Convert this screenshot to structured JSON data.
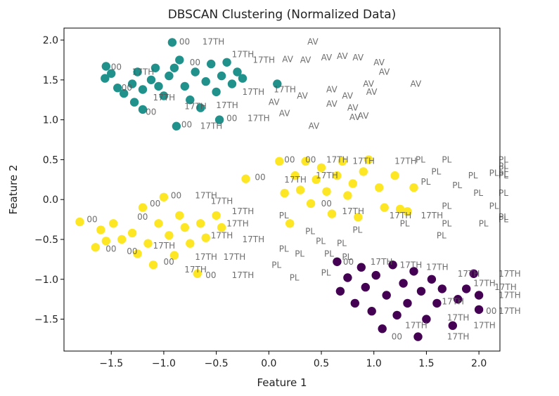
{
  "chart_data": {
    "type": "scatter",
    "title": "DBSCAN Clustering (Normalized Data)",
    "xlabel": "Feature 1",
    "ylabel": "Feature 2",
    "xlim": [
      -1.95,
      2.2
    ],
    "ylim": [
      -1.9,
      2.15
    ],
    "xticks": [
      -1.5,
      -1.0,
      -0.5,
      0.0,
      0.5,
      1.0,
      1.5,
      2.0
    ],
    "xtick_labels": [
      "−1.5",
      "−1.0",
      "−0.5",
      "0.0",
      "0.5",
      "1.0",
      "1.5",
      "2.0"
    ],
    "yticks": [
      -1.5,
      -1.0,
      -0.5,
      0.0,
      0.5,
      1.0,
      1.5,
      2.0
    ],
    "ytick_labels": [
      "−1.5",
      "−1.0",
      "−0.5",
      "0.0",
      "0.5",
      "1.0",
      "1.5",
      "2.0"
    ],
    "grid": false,
    "colors": {
      "teal": "#21918c",
      "yellow": "#fde725",
      "purple": "#440154"
    },
    "points": [
      {
        "x": -0.92,
        "y": 1.97,
        "c": "teal"
      },
      {
        "x": -1.55,
        "y": 1.67,
        "c": "teal"
      },
      {
        "x": -1.5,
        "y": 1.58,
        "c": "teal"
      },
      {
        "x": -1.56,
        "y": 1.52,
        "c": "teal"
      },
      {
        "x": -1.44,
        "y": 1.4,
        "c": "teal"
      },
      {
        "x": -1.38,
        "y": 1.33,
        "c": "teal"
      },
      {
        "x": -1.3,
        "y": 1.45,
        "c": "teal"
      },
      {
        "x": -1.25,
        "y": 1.6,
        "c": "teal"
      },
      {
        "x": -1.2,
        "y": 1.38,
        "c": "teal"
      },
      {
        "x": -1.28,
        "y": 1.22,
        "c": "teal"
      },
      {
        "x": -1.2,
        "y": 1.13,
        "c": "teal"
      },
      {
        "x": -1.12,
        "y": 1.5,
        "c": "teal"
      },
      {
        "x": -1.08,
        "y": 1.65,
        "c": "teal"
      },
      {
        "x": -1.0,
        "y": 1.3,
        "c": "teal"
      },
      {
        "x": -0.95,
        "y": 1.55,
        "c": "teal"
      },
      {
        "x": -0.88,
        "y": 0.92,
        "c": "teal"
      },
      {
        "x": -0.85,
        "y": 1.75,
        "c": "teal"
      },
      {
        "x": -0.8,
        "y": 1.42,
        "c": "teal"
      },
      {
        "x": -0.75,
        "y": 1.25,
        "c": "teal"
      },
      {
        "x": -0.7,
        "y": 1.6,
        "c": "teal"
      },
      {
        "x": -0.65,
        "y": 1.15,
        "c": "teal"
      },
      {
        "x": -0.6,
        "y": 1.48,
        "c": "teal"
      },
      {
        "x": -0.55,
        "y": 1.7,
        "c": "teal"
      },
      {
        "x": -0.5,
        "y": 1.35,
        "c": "teal"
      },
      {
        "x": -0.45,
        "y": 1.55,
        "c": "teal"
      },
      {
        "x": -0.47,
        "y": 1.0,
        "c": "teal"
      },
      {
        "x": -0.4,
        "y": 1.72,
        "c": "teal"
      },
      {
        "x": -0.35,
        "y": 1.45,
        "c": "teal"
      },
      {
        "x": -0.3,
        "y": 1.6,
        "c": "teal"
      },
      {
        "x": -0.25,
        "y": 1.52,
        "c": "teal"
      },
      {
        "x": -0.9,
        "y": 1.65,
        "c": "teal"
      },
      {
        "x": -1.05,
        "y": 1.42,
        "c": "teal"
      },
      {
        "x": 0.08,
        "y": 1.45,
        "c": "teal"
      },
      {
        "x": -1.8,
        "y": -0.28,
        "c": "yellow"
      },
      {
        "x": -1.65,
        "y": -0.6,
        "c": "yellow"
      },
      {
        "x": -1.6,
        "y": -0.38,
        "c": "yellow"
      },
      {
        "x": -1.55,
        "y": -0.52,
        "c": "yellow"
      },
      {
        "x": -1.48,
        "y": -0.3,
        "c": "yellow"
      },
      {
        "x": -1.4,
        "y": -0.5,
        "c": "yellow"
      },
      {
        "x": -1.3,
        "y": -0.42,
        "c": "yellow"
      },
      {
        "x": -1.25,
        "y": -0.68,
        "c": "yellow"
      },
      {
        "x": -1.2,
        "y": -0.1,
        "c": "yellow"
      },
      {
        "x": -1.15,
        "y": -0.55,
        "c": "yellow"
      },
      {
        "x": -1.1,
        "y": -0.82,
        "c": "yellow"
      },
      {
        "x": -1.05,
        "y": -0.3,
        "c": "yellow"
      },
      {
        "x": -1.0,
        "y": 0.03,
        "c": "yellow"
      },
      {
        "x": -0.95,
        "y": -0.45,
        "c": "yellow"
      },
      {
        "x": -0.9,
        "y": -0.7,
        "c": "yellow"
      },
      {
        "x": -0.85,
        "y": -0.2,
        "c": "yellow"
      },
      {
        "x": -0.8,
        "y": -0.35,
        "c": "yellow"
      },
      {
        "x": -0.75,
        "y": -0.55,
        "c": "yellow"
      },
      {
        "x": -0.68,
        "y": -0.93,
        "c": "yellow"
      },
      {
        "x": -0.65,
        "y": -0.3,
        "c": "yellow"
      },
      {
        "x": -0.6,
        "y": -0.48,
        "c": "yellow"
      },
      {
        "x": -0.5,
        "y": -0.2,
        "c": "yellow"
      },
      {
        "x": -0.45,
        "y": -0.35,
        "c": "yellow"
      },
      {
        "x": -0.22,
        "y": 0.26,
        "c": "yellow"
      },
      {
        "x": 0.1,
        "y": 0.48,
        "c": "yellow"
      },
      {
        "x": 0.15,
        "y": 0.08,
        "c": "yellow"
      },
      {
        "x": 0.2,
        "y": -0.3,
        "c": "yellow"
      },
      {
        "x": 0.25,
        "y": 0.3,
        "c": "yellow"
      },
      {
        "x": 0.3,
        "y": 0.12,
        "c": "yellow"
      },
      {
        "x": 0.35,
        "y": 0.48,
        "c": "yellow"
      },
      {
        "x": 0.4,
        "y": -0.05,
        "c": "yellow"
      },
      {
        "x": 0.45,
        "y": 0.25,
        "c": "yellow"
      },
      {
        "x": 0.5,
        "y": 0.4,
        "c": "yellow"
      },
      {
        "x": 0.55,
        "y": 0.1,
        "c": "yellow"
      },
      {
        "x": 0.6,
        "y": -0.18,
        "c": "yellow"
      },
      {
        "x": 0.65,
        "y": 0.3,
        "c": "yellow"
      },
      {
        "x": 0.7,
        "y": 0.48,
        "c": "yellow"
      },
      {
        "x": 0.75,
        "y": 0.05,
        "c": "yellow"
      },
      {
        "x": 0.8,
        "y": 0.2,
        "c": "yellow"
      },
      {
        "x": 0.85,
        "y": -0.22,
        "c": "yellow"
      },
      {
        "x": 0.9,
        "y": 0.35,
        "c": "yellow"
      },
      {
        "x": 0.95,
        "y": 0.5,
        "c": "yellow"
      },
      {
        "x": 1.05,
        "y": 0.15,
        "c": "yellow"
      },
      {
        "x": 1.1,
        "y": -0.1,
        "c": "yellow"
      },
      {
        "x": 1.2,
        "y": 0.3,
        "c": "yellow"
      },
      {
        "x": 1.25,
        "y": -0.12,
        "c": "yellow"
      },
      {
        "x": 1.32,
        "y": -0.15,
        "c": "yellow"
      },
      {
        "x": 1.38,
        "y": 0.15,
        "c": "yellow"
      },
      {
        "x": 0.65,
        "y": -0.78,
        "c": "purple"
      },
      {
        "x": 0.68,
        "y": -1.15,
        "c": "purple"
      },
      {
        "x": 0.75,
        "y": -0.98,
        "c": "purple"
      },
      {
        "x": 0.82,
        "y": -1.3,
        "c": "purple"
      },
      {
        "x": 0.88,
        "y": -0.85,
        "c": "purple"
      },
      {
        "x": 0.92,
        "y": -1.1,
        "c": "purple"
      },
      {
        "x": 0.98,
        "y": -1.4,
        "c": "purple"
      },
      {
        "x": 1.02,
        "y": -0.95,
        "c": "purple"
      },
      {
        "x": 1.08,
        "y": -1.62,
        "c": "purple"
      },
      {
        "x": 1.12,
        "y": -1.2,
        "c": "purple"
      },
      {
        "x": 1.18,
        "y": -0.82,
        "c": "purple"
      },
      {
        "x": 1.22,
        "y": -1.45,
        "c": "purple"
      },
      {
        "x": 1.28,
        "y": -1.05,
        "c": "purple"
      },
      {
        "x": 1.32,
        "y": -1.3,
        "c": "purple"
      },
      {
        "x": 1.38,
        "y": -0.9,
        "c": "purple"
      },
      {
        "x": 1.42,
        "y": -1.72,
        "c": "purple"
      },
      {
        "x": 1.45,
        "y": -1.15,
        "c": "purple"
      },
      {
        "x": 1.5,
        "y": -1.5,
        "c": "purple"
      },
      {
        "x": 1.55,
        "y": -1.0,
        "c": "purple"
      },
      {
        "x": 1.6,
        "y": -1.3,
        "c": "purple"
      },
      {
        "x": 1.65,
        "y": -1.12,
        "c": "purple"
      },
      {
        "x": 1.75,
        "y": -1.58,
        "c": "purple"
      },
      {
        "x": 1.8,
        "y": -1.25,
        "c": "purple"
      },
      {
        "x": 1.88,
        "y": -1.12,
        "c": "purple"
      },
      {
        "x": 1.95,
        "y": -0.93,
        "c": "purple"
      },
      {
        "x": 2.0,
        "y": -1.38,
        "c": "purple"
      },
      {
        "x": 2.0,
        "y": -1.2,
        "c": "purple"
      }
    ],
    "annotations": [
      {
        "text": "00",
        "x": -0.9,
        "y": 1.98
      },
      {
        "text": "17TH",
        "x": -0.68,
        "y": 1.98
      },
      {
        "text": "AV",
        "x": 0.32,
        "y": 1.98
      },
      {
        "text": "00",
        "x": -1.55,
        "y": 1.66
      },
      {
        "text": "17TH",
        "x": -1.35,
        "y": 1.6
      },
      {
        "text": "00",
        "x": -0.8,
        "y": 1.72
      },
      {
        "text": "17TH",
        "x": -0.4,
        "y": 1.82
      },
      {
        "text": "17TH",
        "x": -0.2,
        "y": 1.75
      },
      {
        "text": "AV",
        "x": 0.08,
        "y": 1.76
      },
      {
        "text": "AV",
        "x": 0.25,
        "y": 1.75
      },
      {
        "text": "AV",
        "x": 0.45,
        "y": 1.78
      },
      {
        "text": "AV",
        "x": 0.6,
        "y": 1.8
      },
      {
        "text": "AV",
        "x": 0.75,
        "y": 1.78
      },
      {
        "text": "AV",
        "x": 0.95,
        "y": 1.72
      },
      {
        "text": "AV",
        "x": 1.0,
        "y": 1.6
      },
      {
        "text": "AV",
        "x": 0.85,
        "y": 1.45
      },
      {
        "text": "AV",
        "x": 1.3,
        "y": 1.45
      },
      {
        "text": "AV",
        "x": 0.5,
        "y": 1.38
      },
      {
        "text": "AV",
        "x": 0.65,
        "y": 1.3
      },
      {
        "text": "AV",
        "x": 0.88,
        "y": 1.35
      },
      {
        "text": "00",
        "x": -1.45,
        "y": 1.4
      },
      {
        "text": "17TH",
        "x": -1.15,
        "y": 1.28
      },
      {
        "text": "00",
        "x": -1.22,
        "y": 1.1
      },
      {
        "text": "17TH",
        "x": -0.85,
        "y": 1.17
      },
      {
        "text": "17TH",
        "x": -0.55,
        "y": 1.18
      },
      {
        "text": "17TH",
        "x": -0.3,
        "y": 1.35
      },
      {
        "text": "17TH",
        "x": 0.0,
        "y": 1.38
      },
      {
        "text": "AV",
        "x": -0.05,
        "y": 1.22
      },
      {
        "text": "AV",
        "x": 0.22,
        "y": 1.3
      },
      {
        "text": "AV",
        "x": 0.5,
        "y": 1.2
      },
      {
        "text": "AV",
        "x": 0.7,
        "y": 1.15
      },
      {
        "text": "AV",
        "x": 0.05,
        "y": 1.08
      },
      {
        "text": "00",
        "x": -0.45,
        "y": 1.02
      },
      {
        "text": "17TH",
        "x": -0.7,
        "y": 0.92
      },
      {
        "text": "17TH",
        "x": -0.25,
        "y": 1.02
      },
      {
        "text": "00",
        "x": -0.88,
        "y": 0.94
      },
      {
        "text": "AV",
        "x": 0.33,
        "y": 0.92
      },
      {
        "text": "AV",
        "x": 0.72,
        "y": 1.03
      },
      {
        "text": "AV",
        "x": 0.8,
        "y": 1.05
      },
      {
        "text": "00",
        "x": 0.1,
        "y": 0.5
      },
      {
        "text": "00",
        "x": 0.3,
        "y": 0.5
      },
      {
        "text": "17TH",
        "x": 0.5,
        "y": 0.5
      },
      {
        "text": "17TH",
        "x": 0.75,
        "y": 0.48
      },
      {
        "text": "17TH",
        "x": 1.15,
        "y": 0.48
      },
      {
        "text": "PL",
        "x": 1.35,
        "y": 0.5
      },
      {
        "text": "PL",
        "x": 1.6,
        "y": 0.5
      },
      {
        "text": "PL",
        "x": 2.3,
        "y": 0.5
      },
      {
        "text": "PL",
        "x": 2.4,
        "y": 0.42
      },
      {
        "text": "PL",
        "x": 2.2,
        "y": 0.38
      },
      {
        "text": "PL",
        "x": 2.5,
        "y": 0.32
      },
      {
        "text": "PL",
        "x": 2.05,
        "y": 0.33
      },
      {
        "text": "PL",
        "x": 1.85,
        "y": 0.3
      },
      {
        "text": "PL",
        "x": 2.33,
        "y": 0.3
      },
      {
        "text": "PL",
        "x": 1.5,
        "y": 0.35
      },
      {
        "text": "00",
        "x": -0.18,
        "y": 0.28
      },
      {
        "text": "17TH",
        "x": 0.1,
        "y": 0.25
      },
      {
        "text": "17TH",
        "x": 0.4,
        "y": 0.3
      },
      {
        "text": "PL",
        "x": 1.4,
        "y": 0.22
      },
      {
        "text": "PL",
        "x": 1.7,
        "y": 0.18
      },
      {
        "text": "PL",
        "x": 1.9,
        "y": 0.08
      },
      {
        "text": "PL",
        "x": 2.2,
        "y": 0.08
      },
      {
        "text": "PL",
        "x": 2.05,
        "y": -0.08
      },
      {
        "text": "PL",
        "x": 1.6,
        "y": -0.08
      },
      {
        "text": "PL",
        "x": 2.25,
        "y": -0.22
      },
      {
        "text": "PL",
        "x": 2.4,
        "y": -0.25
      },
      {
        "text": "PL",
        "x": 1.95,
        "y": -0.3
      },
      {
        "text": "PL",
        "x": 1.6,
        "y": -0.3
      },
      {
        "text": "17TH",
        "x": 1.4,
        "y": -0.2
      },
      {
        "text": "17TH",
        "x": 1.1,
        "y": -0.2
      },
      {
        "text": "PL",
        "x": 1.55,
        "y": -0.45
      },
      {
        "text": "PL",
        "x": 1.2,
        "y": -0.3
      },
      {
        "text": "00",
        "x": 0.45,
        "y": -0.05
      },
      {
        "text": "17TH",
        "x": 0.65,
        "y": -0.15
      },
      {
        "text": "PL",
        "x": 0.75,
        "y": -0.38
      },
      {
        "text": "PL",
        "x": 0.4,
        "y": -0.52
      },
      {
        "text": "PL",
        "x": 0.6,
        "y": -0.55
      },
      {
        "text": "PL",
        "x": 0.65,
        "y": -0.72
      },
      {
        "text": "PL",
        "x": 0.48,
        "y": -0.68
      },
      {
        "text": "PL",
        "x": 0.2,
        "y": -0.68
      },
      {
        "text": "PL",
        "x": 0.05,
        "y": -0.62
      },
      {
        "text": "PL",
        "x": 0.3,
        "y": -0.4
      },
      {
        "text": "PL",
        "x": -0.02,
        "y": -0.82
      },
      {
        "text": "PL",
        "x": 0.15,
        "y": -0.98
      },
      {
        "text": "PL",
        "x": 0.45,
        "y": -0.92
      },
      {
        "text": "PL",
        "x": 0.05,
        "y": -0.2
      },
      {
        "text": "00",
        "x": -1.78,
        "y": -0.25
      },
      {
        "text": "00",
        "x": -1.6,
        "y": -0.62
      },
      {
        "text": "00",
        "x": -1.3,
        "y": -0.22
      },
      {
        "text": "00",
        "x": -1.18,
        "y": -0.05
      },
      {
        "text": "00",
        "x": -0.98,
        "y": 0.05
      },
      {
        "text": "17TH",
        "x": -0.75,
        "y": 0.05
      },
      {
        "text": "17TH",
        "x": -0.6,
        "y": -0.02
      },
      {
        "text": "17TH",
        "x": -0.4,
        "y": -0.15
      },
      {
        "text": "17TH",
        "x": -0.45,
        "y": -0.3
      },
      {
        "text": "17TH",
        "x": -0.6,
        "y": -0.45
      },
      {
        "text": "17TH",
        "x": -0.3,
        "y": -0.5
      },
      {
        "text": "17TH",
        "x": -1.15,
        "y": -0.58
      },
      {
        "text": "17TH",
        "x": -0.75,
        "y": -0.72
      },
      {
        "text": "17TH",
        "x": -0.48,
        "y": -0.72
      },
      {
        "text": "00",
        "x": -1.05,
        "y": -0.78
      },
      {
        "text": "17TH",
        "x": -0.85,
        "y": -0.88
      },
      {
        "text": "00",
        "x": -0.65,
        "y": -0.95
      },
      {
        "text": "17TH",
        "x": -0.4,
        "y": -0.95
      },
      {
        "text": "00",
        "x": -1.4,
        "y": -0.65
      },
      {
        "text": "00",
        "x": 0.66,
        "y": -0.78
      },
      {
        "text": "17TH",
        "x": 0.92,
        "y": -0.78
      },
      {
        "text": "17TH",
        "x": 1.2,
        "y": -0.82
      },
      {
        "text": "17TH",
        "x": 1.45,
        "y": -0.85
      },
      {
        "text": "17TH",
        "x": 1.75,
        "y": -0.93
      },
      {
        "text": "17TH",
        "x": 2.15,
        "y": -0.93
      },
      {
        "text": "17TH",
        "x": 1.9,
        "y": -1.05
      },
      {
        "text": "17TH",
        "x": 2.1,
        "y": -1.1
      },
      {
        "text": "17TH",
        "x": 2.25,
        "y": -1.2
      },
      {
        "text": "17TH",
        "x": 1.6,
        "y": -1.28
      },
      {
        "text": "17TH",
        "x": 2.25,
        "y": -1.4
      },
      {
        "text": "17TH",
        "x": 1.65,
        "y": -1.48
      },
      {
        "text": "17TH",
        "x": 1.25,
        "y": -1.58
      },
      {
        "text": "17TH",
        "x": 1.9,
        "y": -1.58
      },
      {
        "text": "17TH",
        "x": 1.65,
        "y": -1.72
      },
      {
        "text": "00",
        "x": 1.12,
        "y": -1.72
      },
      {
        "text": "00",
        "x": 2.02,
        "y": -1.4
      }
    ]
  }
}
